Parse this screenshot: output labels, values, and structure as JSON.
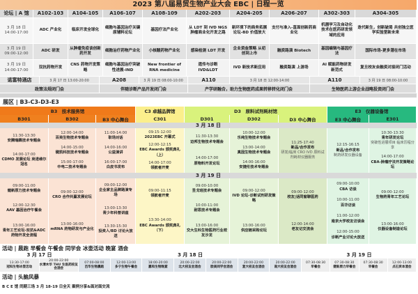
{
  "title": "2023 第八届易贸生物产业大会 EBC | 日程一览",
  "forums": {
    "label": "论坛 | A 馆",
    "columns": [
      "A102-103",
      "A104-105",
      "A106-107",
      "A108-109",
      "A202-203",
      "A204-205",
      "A206-207",
      "A302-303",
      "A304-305"
    ],
    "rows": [
      {
        "date": "3 月 18 日",
        "time": "14:00-17:00",
        "cells": [
          "ADC 产业化",
          "临床开发全球化",
          "细胞与基因治疗关键原辅料论坛",
          "基因疗法产业化",
          "从 LDT 到 IVD NGS 肿瘤商业化开发之路",
          "新环境下的商务拓展论坛-BD 价值放大",
          "支付与准入-直面创新药商业化",
          "机器学习及自动化技术在医药研发领域的应用",
          "迭代新生，创新破局 共创独立医学实验室新未来"
        ]
      },
      {
        "date": "3 月 19 日",
        "time": "09:00-12:00",
        "cells": [
          "ADC 研发",
          "从肿瘤免疫谈创新药开发",
          "细胞治疗药物产业化",
          "小核酸药物产业化",
          "感染检测 LDT 开发",
          "企业资金策略 从初创到上市",
          "融资路演 Biotech",
          "基因编辑与基因疗法",
          "国际市场-更多潜在市场"
        ]
      },
      {
        "date": "3 月 19 日",
        "time": "14:00-17:00",
        "cells": [
          "双抗药物开发",
          "CNS 药物开发策略",
          "细胞与基因治疗突破性进展-IND",
          "New frontier of RNA medicine",
          "遗传与诊断 IVD&LDT",
          "IVD 新技术新应用",
          "融资路演 上游场",
          "AI 赋能药物研发新范式",
          "复旦校友会融资对接闭门活动"
        ]
      }
    ]
  },
  "closed_meetings": [
    {
      "venue": "诺富特酒店",
      "time": "3 月 17 日 13:00-20:00",
      "name": "政策法规闭门会"
    },
    {
      "venue": "A208",
      "time": "3 月 19 日 08:00-10:00",
      "name": "伴随诊断产品开发闭门会"
    },
    {
      "venue": "A110",
      "time": "3 月 18 日 12:00-14:00",
      "name": "产学研融合，助力生物医药成果转移转化闭门会"
    },
    {
      "venue": "A110",
      "time": "3 月 19 日 08:00-10:00",
      "name": "生物医药上游企业战略投资闭门会"
    }
  ],
  "expo": {
    "label": "展区 | B3-C3-D3-E3",
    "halls": [
      {
        "name": "B3　技术服务馆",
        "color": "#f07a1a",
        "subs": [
          "B301",
          "B302",
          "B3 中心舞台"
        ]
      },
      {
        "name": "C3 卓越品牌馆",
        "color": "#fbef8c",
        "subs": [
          "C301"
        ]
      },
      {
        "name": "D3　原料试剂耗材馆",
        "color": "#d9f27c",
        "subs": [
          "D301",
          "D302",
          "D3 中心舞台"
        ]
      },
      {
        "name": "E3　仪器设备馆",
        "color": "#27b97f",
        "subs": [
          "E3 中心舞台",
          "E301"
        ]
      }
    ],
    "days": [
      {
        "date": "3 月 18 日",
        "columns": [
          [
            {
              "time": "11:30-13:30",
              "name": "安腾瑞霖技术专题会"
            },
            {
              "time": "14:00-17:00",
              "name": "CDMO 发展论坛 英诺维尔冠名"
            }
          ],
          [
            {
              "time": "12:00-14:00",
              "name": "百英生物技术专题会"
            },
            {
              "time": "14:00-15:00",
              "name": "键凯科技技术专题会"
            },
            {
              "time": "15:00-17:00",
              "name": "中电二技术专题会"
            }
          ],
          [
            {
              "time": "11:00-14:00",
              "name": "职场对话"
            },
            {
              "time": "14:00-16:00",
              "name": "公益演讲"
            },
            {
              "time": "16:00-17:00",
              "name": "白皮书发布"
            }
          ],
          [
            {
              "time": "09:15-12:00",
              "name": "2023EBC 开幕式"
            },
            {
              "time": "12:00-12:15",
              "name": "EBC Awards 颁奖典礼（上）"
            },
            {
              "time": "14:00-17:00",
              "name": "领航者开麦"
            }
          ],
          [
            {
              "time": "11:30-13:30",
              "name": "迈邦生物技术专题会"
            },
            {
              "time": "14:00-17:00",
              "name": "原物料开发论坛"
            }
          ],
          [
            {
              "time": "10:00-12:00",
              "name": "乐纯生物技术专题会"
            },
            {
              "time": "13:00-14:00",
              "name": "真固生物技术专题会"
            },
            {
              "time": "14:00-16:00",
              "name": "安捷伦技术专题会"
            }
          ],
          [
            {
              "time": "11:25-17:40",
              "name": "新品/合作发布",
              "desc": "研发/临床 CRO IVD 原料试剂耗材仪器服务"
            }
          ],
          [
            {
              "time": "12:15-16:15",
              "name": "新品/合作发布",
              "desc": "制药研发仪器设备"
            }
          ],
          [
            {
              "time": "10:30-13:30",
              "name": "青年研发论坛",
              "desc": "突破性进展项目 临床历程分享"
            },
            {
              "time": "14:00-17:00",
              "name": "CBA-肿瘤疗法开发策略论坛"
            }
          ]
        ]
      },
      {
        "date": "3 月 19 日",
        "columns": [
          [
            {
              "time": "09:00-11:00",
              "name": "健新原力技术专题会"
            },
            {
              "time": "12:00-12:30",
              "name": "AAV 基因治疗午餐会"
            },
            {
              "time": "13:00-16:00",
              "name": "青年工艺论坛-双抗&ADC 药物开发全流程"
            }
          ],
          [
            {
              "time": "09:00-12:00",
              "name": "CRO 合作共赢发展论坛"
            },
            {
              "time": "13:00-16:00",
              "name": "mRNA 药物研发与产业化"
            }
          ],
          [
            {
              "time": "09:00-12:00",
              "name": "企业家主品牌路演专场"
            },
            {
              "time": "13:00-13:30",
              "name": "青少年科普讲座"
            },
            {
              "time": "13:30-15:30",
              "name": "投资人/BD 讨论大放送"
            }
          ],
          [
            {
              "time": "09:00-11:15",
              "name": "领航者开麦"
            },
            {
              "time": "13:30-14:00",
              "name": "EBC Awards 颁奖典礼（下）"
            }
          ],
          [
            {
              "time": "09:00-10:00",
              "name": "圣戈班技术专题会"
            },
            {
              "time": "10:00-11:00",
              "name": "耐思技术专题会"
            },
            {
              "time": "13:00-16:00",
              "name": "交大生科生物医药行业校友沙龙"
            }
          ],
          [
            {
              "time": "09:00-12:00",
              "name": "IVD 论坛-诊断试剂研发策略"
            },
            {
              "time": "13:00-16:00",
              "name": "供应链采购论坛"
            }
          ],
          [
            {
              "time": "09:00-12:00",
              "name": "校友|话同窗聊医药"
            },
            {
              "time": "12:00-14:00",
              "name": "老友记交流会"
            }
          ],
          [
            {
              "time": "09:00-10:00",
              "name": "CBA 访谈"
            },
            {
              "time": "10:00-11:00",
              "name": "百华访谈"
            },
            {
              "time": "11:00-12:00",
              "name": "南京大学校友访谈会"
            },
            {
              "time": "12:00-15:00",
              "name": "诊断产业讨论大放送"
            }
          ],
          [
            {
              "time": "09:00-12:00",
              "name": "生物药青年工艺论坛"
            },
            {
              "time": "13:00-16:00",
              "name": "仪器设备制造论坛"
            }
          ]
        ]
      }
    ]
  },
  "activities": {
    "label": "活动 | 晨跑 早餐会 午餐会 同学会 冰壶活动 晚宴 酒会",
    "days": [
      {
        "date": "3 月 17 日",
        "items": [
          {
            "time": "13:30-17:00",
            "name": "冠科生物冰壶活动"
          },
          {
            "time": "20:00-22:00",
            "name": "水清木华 THU 生医药校友会酒会"
          }
        ]
      },
      {
        "date": "3 月 18 日",
        "items": [
          {
            "time": "07:00-08:00",
            "name": "百华生物晨跑"
          },
          {
            "time": "12:00-13:00",
            "name": "多宁生物午餐会"
          },
          {
            "time": "18:00-20:00",
            "name": "嘉和生物晚宴"
          },
          {
            "time": "20:00-22:00",
            "name": "北大校友会酒会"
          },
          {
            "time": "20:00-22:00",
            "name": "欧美同学会酒会"
          },
          {
            "time": "20:00-22:00",
            "name": "复大校友会酒会"
          },
          {
            "time": "20:00-22:00",
            "name": "南大校友会酒会"
          }
        ]
      },
      {
        "date": "3 月 19 日",
        "items": [
          {
            "time": "07:30-08:30",
            "name": "早餐会"
          },
          {
            "time": "07:30-08:30",
            "name": "健新原力早餐会"
          },
          {
            "time": "07:30-08:30",
            "name": "早餐会"
          },
          {
            "time": "12:00-13:00",
            "name": "点石资本酒会"
          }
        ]
      }
    ]
  },
  "brainstorm": {
    "label": "活动 | 头脑风暴",
    "text": "B C E 馆 同期三场 3 月 18-19 日全天 案例分享&面对面交流"
  }
}
